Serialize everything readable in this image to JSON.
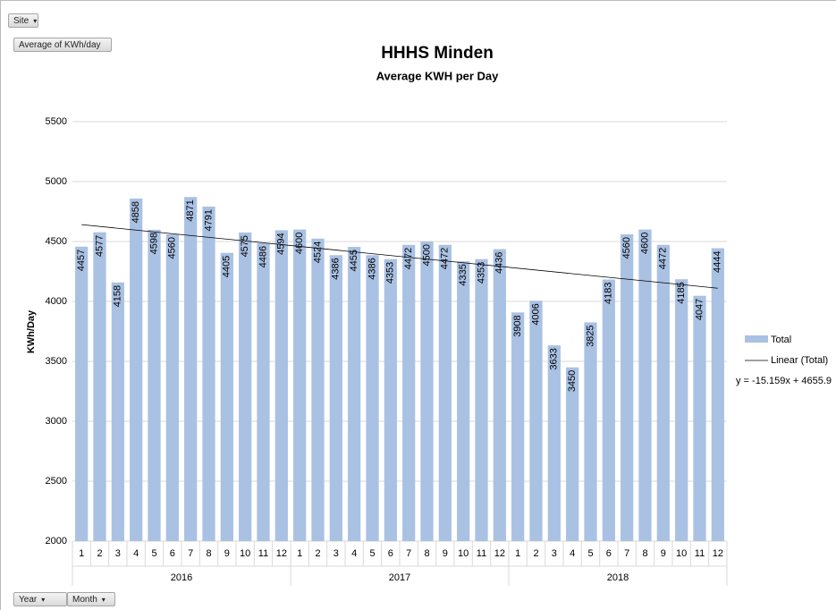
{
  "chart_data": {
    "type": "bar",
    "title": "HHHS Minden",
    "subtitle": "Average KWH per Day",
    "y_label": "KWh/Day",
    "categories": [
      "1",
      "2",
      "3",
      "4",
      "5",
      "6",
      "7",
      "8",
      "9",
      "10",
      "11",
      "12",
      "1",
      "2",
      "3",
      "4",
      "5",
      "6",
      "7",
      "8",
      "9",
      "10",
      "11",
      "12",
      "1",
      "2",
      "3",
      "4",
      "5",
      "6",
      "7",
      "8",
      "9",
      "10",
      "11",
      "12"
    ],
    "groups": [
      "2016",
      "2017",
      "2018"
    ],
    "series": [
      {
        "name": "Total",
        "color": "#a9c1e3",
        "values": [
          4457,
          4577,
          4158,
          4858,
          4598,
          4560,
          4871,
          4791,
          4405,
          4575,
          4486,
          4594,
          4600,
          4524,
          4386,
          4455,
          4386,
          4353,
          4472,
          4500,
          4472,
          4335,
          4353,
          4436,
          3908,
          4006,
          3633,
          3450,
          3825,
          4183,
          4560,
          4600,
          4472,
          4185,
          4047,
          4444
        ]
      }
    ],
    "trendline": {
      "name": "Linear (Total)",
      "equation": "y = -15.159x + 4655.9",
      "slope": -15.159,
      "intercept": 4655.9,
      "color": "#000000"
    },
    "ylim": [
      2000,
      5500
    ],
    "yticks": [
      2000,
      2500,
      3000,
      3500,
      4000,
      4500,
      5000,
      5500
    ],
    "grid": true,
    "legend": "right"
  },
  "pivot_buttons": {
    "filter": "Site",
    "value_field": "Average of KWh/day",
    "axis_fields": [
      "Year",
      "Month"
    ]
  }
}
